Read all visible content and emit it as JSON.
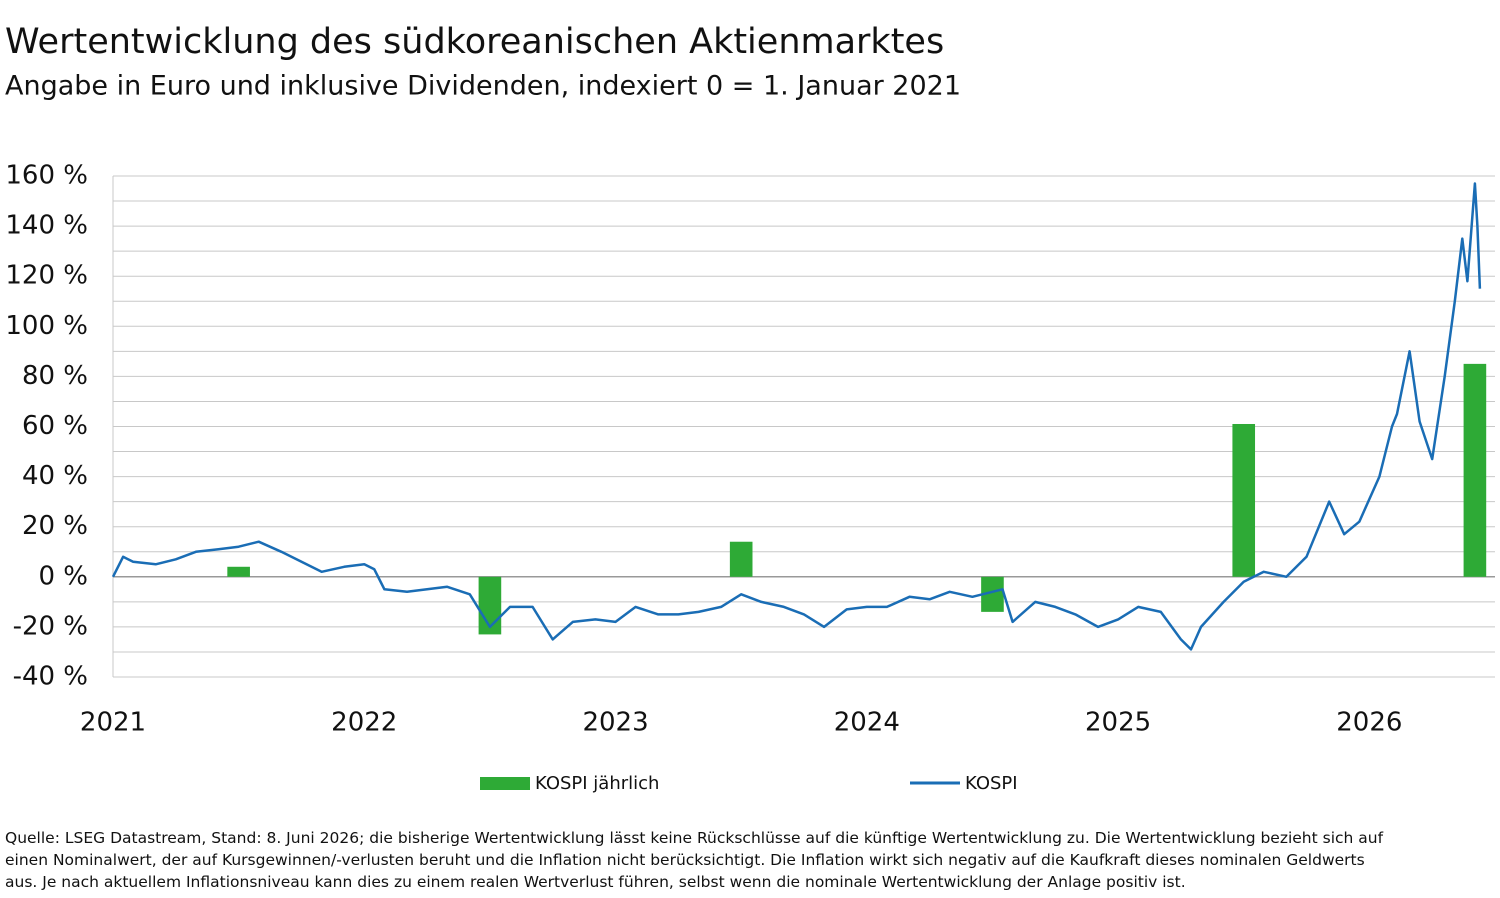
{
  "chart_data": {
    "type": "combo",
    "title": "Wertentwicklung des südkoreanischen Aktienmarktes",
    "subtitle": "Angabe in Euro und inklusive Dividenden, indexiert 0 = 1. Januar 2021",
    "xlim": [
      2021,
      2026.5
    ],
    "xticks": [
      2021,
      2022,
      2023,
      2024,
      2025,
      2026
    ],
    "ylim": [
      -40,
      160
    ],
    "yticks": [
      {
        "value": -40,
        "label": "-40 %"
      },
      {
        "value": -20,
        "label": "-20 %"
      },
      {
        "value": 0,
        "label": "0 %"
      },
      {
        "value": 20,
        "label": "20 %"
      },
      {
        "value": 40,
        "label": "40 %"
      },
      {
        "value": 60,
        "label": "60 %"
      },
      {
        "value": 80,
        "label": "80 %"
      },
      {
        "value": 100,
        "label": "100 %"
      },
      {
        "value": 120,
        "label": "120 %"
      },
      {
        "value": 140,
        "label": "140 %"
      },
      {
        "value": 160,
        "label": "160 %"
      }
    ],
    "ygrid": [
      -40,
      -30,
      -20,
      -10,
      0,
      10,
      20,
      30,
      40,
      50,
      60,
      70,
      80,
      90,
      100,
      110,
      120,
      130,
      140,
      150,
      160
    ],
    "grid": true,
    "series": [
      {
        "name": "KOSPI jährlich",
        "type": "bar",
        "color": "#2eaa36",
        "x": [
          2021.5,
          2022.5,
          2023.5,
          2024.5,
          2025.5,
          2026.42
        ],
        "values": [
          4,
          -23,
          14,
          -14,
          61,
          85
        ]
      },
      {
        "name": "KOSPI",
        "type": "line",
        "color": "#1a6db5",
        "x": [
          2021.0,
          2021.04,
          2021.08,
          2021.17,
          2021.25,
          2021.33,
          2021.42,
          2021.5,
          2021.58,
          2021.67,
          2021.75,
          2021.83,
          2021.92,
          2022.0,
          2022.04,
          2022.08,
          2022.17,
          2022.25,
          2022.33,
          2022.42,
          2022.5,
          2022.58,
          2022.67,
          2022.75,
          2022.83,
          2022.92,
          2023.0,
          2023.08,
          2023.17,
          2023.25,
          2023.33,
          2023.42,
          2023.5,
          2023.58,
          2023.67,
          2023.75,
          2023.83,
          2023.92,
          2024.0,
          2024.08,
          2024.17,
          2024.25,
          2024.33,
          2024.42,
          2024.5,
          2024.54,
          2024.58,
          2024.67,
          2024.75,
          2024.83,
          2024.92,
          2025.0,
          2025.08,
          2025.17,
          2025.25,
          2025.29,
          2025.33,
          2025.42,
          2025.5,
          2025.58,
          2025.67,
          2025.75,
          2025.84,
          2025.9,
          2025.96,
          2026.04,
          2026.09,
          2026.11,
          2026.16,
          2026.2,
          2026.25,
          2026.3,
          2026.34,
          2026.37,
          2026.39,
          2026.42,
          2026.43,
          2026.44
        ],
        "values": [
          0,
          8,
          6,
          5,
          7,
          10,
          11,
          12,
          14,
          10,
          6,
          2,
          4,
          5,
          3,
          -5,
          -6,
          -5,
          -4,
          -7,
          -20,
          -12,
          -12,
          -25,
          -18,
          -17,
          -18,
          -12,
          -15,
          -15,
          -14,
          -12,
          -7,
          -10,
          -12,
          -15,
          -20,
          -13,
          -12,
          -12,
          -8,
          -9,
          -6,
          -8,
          -6,
          -5,
          -18,
          -10,
          -12,
          -15,
          -20,
          -17,
          -12,
          -14,
          -25,
          -29,
          -20,
          -10,
          -2,
          2,
          0,
          8,
          30,
          17,
          22,
          40,
          60,
          65,
          90,
          62,
          47,
          80,
          110,
          135,
          118,
          157,
          140,
          115
        ]
      }
    ],
    "source": [
      "Quelle: LSEG Datastream, Stand: 8. Juni 2026; die bisherige Wertentwicklung lässt keine Rückschlüsse auf die künftige Wertentwicklung zu. Die Wertentwicklung bezieht sich auf",
      "einen Nominalwert, der auf Kursgewinnen/-verlusten beruht und die Inflation nicht berücksichtigt. Die Inflation wirkt sich negativ auf die Kaufkraft dieses nominalen Geldwerts",
      "aus. Je nach aktuellem Inflationsniveau kann dies zu einem realen Wertverlust führen, selbst wenn die nominale Wertentwicklung der Anlage positiv ist."
    ]
  }
}
